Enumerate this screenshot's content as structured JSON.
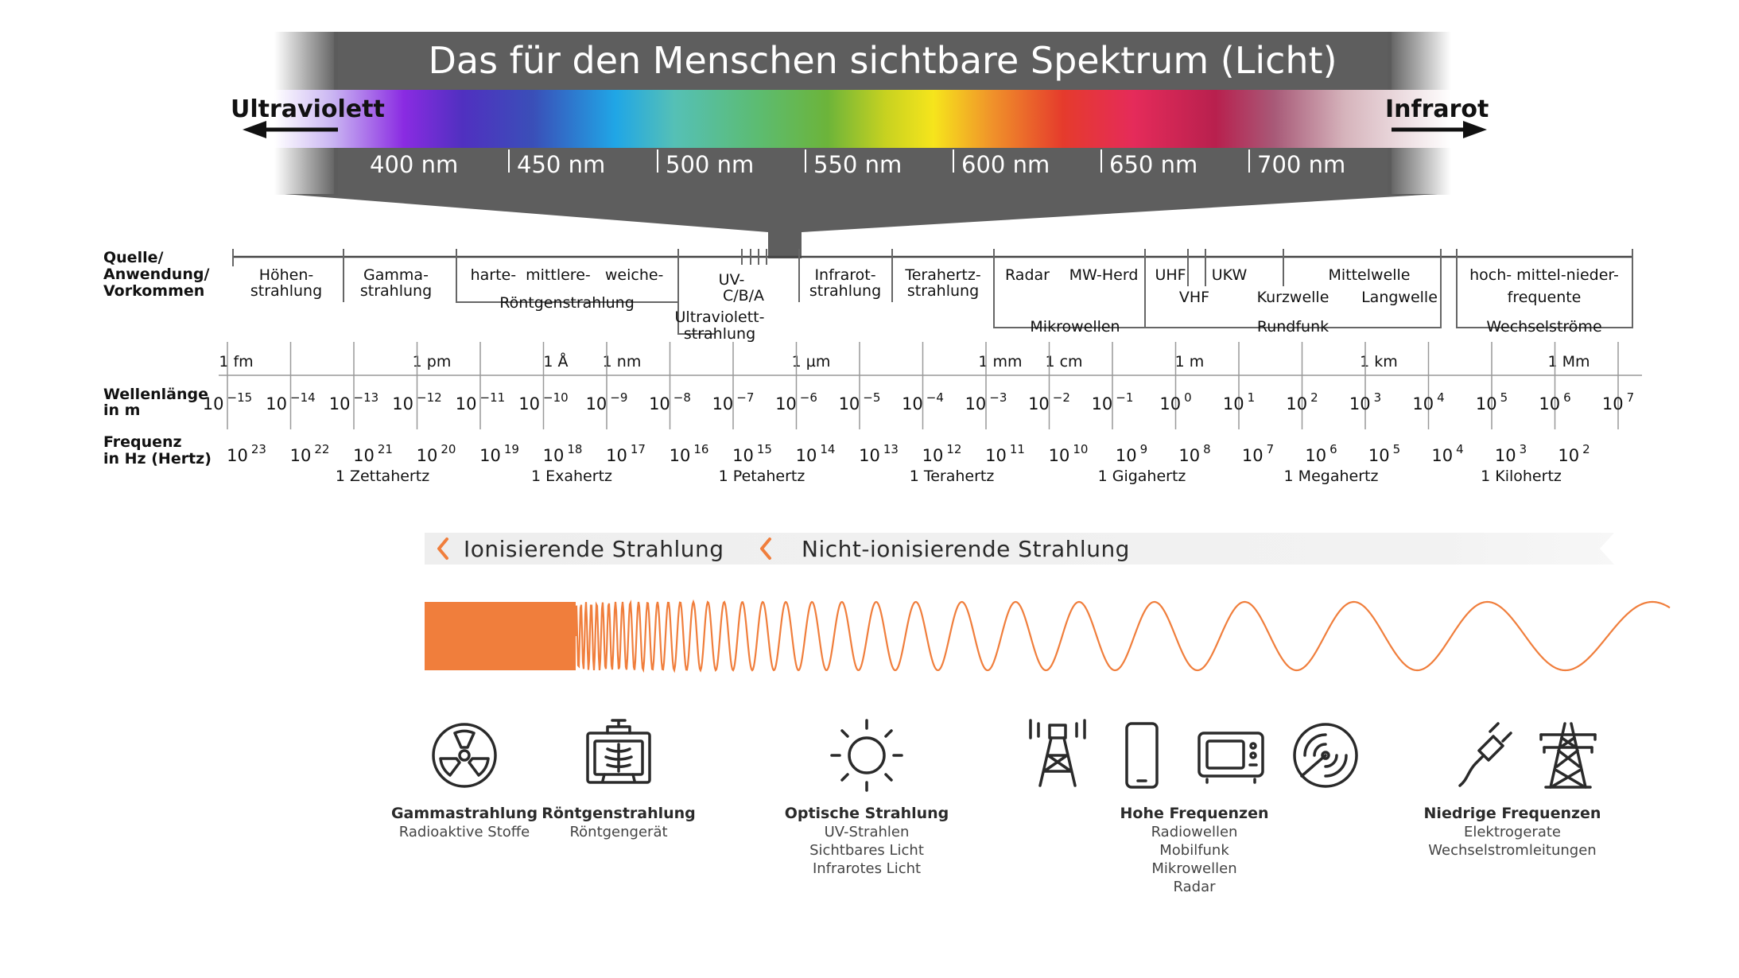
{
  "spectrum": {
    "title": "Das für den Menschen sichtbare Spektrum (Licht)",
    "left_label": "Ultraviolett",
    "right_label": "Infrarot",
    "ticks": [
      "400 nm",
      "450 nm",
      "500 nm",
      "550 nm",
      "600 nm",
      "650 nm",
      "700 nm"
    ]
  },
  "scale": {
    "row_labels": {
      "source": [
        "Quelle/",
        "Anwendung/",
        "Vorkommen"
      ],
      "wavelength": [
        "Wellenlänge",
        "in m"
      ],
      "frequency": [
        "Frequenz",
        "in Hz (Hertz)"
      ]
    },
    "sources": [
      {
        "lines": [
          "Höhen-",
          "strahlung"
        ]
      },
      {
        "lines": [
          "Gamma-",
          "strahlung"
        ]
      },
      {
        "lines": [
          "harte-  mittlere-   weiche-"
        ]
      },
      {
        "lines": [
          "Röntgenstrahlung"
        ]
      },
      {
        "lines": [
          "UV-",
          "C/B/A"
        ]
      },
      {
        "lines": [
          "Ultraviolett-",
          "strahlung"
        ]
      },
      {
        "lines": [
          "Infrarot-",
          "strahlung"
        ]
      },
      {
        "lines": [
          "Terahertz-",
          "strahlung"
        ]
      },
      {
        "lines": [
          "Radar"
        ]
      },
      {
        "lines": [
          "MW-Herd"
        ]
      },
      {
        "lines": [
          "Mikrowellen"
        ]
      },
      {
        "lines": [
          "UHF"
        ]
      },
      {
        "lines": [
          "VHF"
        ]
      },
      {
        "lines": [
          "UKW"
        ]
      },
      {
        "lines": [
          "Kurzwelle"
        ]
      },
      {
        "lines": [
          "Mittelwelle"
        ]
      },
      {
        "lines": [
          "Langwelle"
        ]
      },
      {
        "lines": [
          "Rundfunk"
        ]
      },
      {
        "lines": [
          "hoch- mittel-nieder-",
          "frequente"
        ]
      },
      {
        "lines": [
          "Wechselströme"
        ]
      }
    ],
    "length_units": [
      "1 fm",
      "1 pm",
      "1 Å",
      "1 nm",
      "1 µm",
      "1 mm",
      "1 cm",
      "1 m",
      "1 km",
      "1 Mm"
    ],
    "wavelength_exponents": [
      "−15",
      "−14",
      "−13",
      "−12",
      "−11",
      "−10",
      "−9",
      "−8",
      "−7",
      "−6",
      "−5",
      "−4",
      "−3",
      "−2",
      "−1",
      "0",
      "1",
      "2",
      "3",
      "4",
      "5",
      "6",
      "7"
    ],
    "frequency_exponents": [
      "23",
      "22",
      "21",
      "20",
      "19",
      "18",
      "17",
      "16",
      "15",
      "14",
      "13",
      "12",
      "11",
      "10",
      "9",
      "8",
      "7",
      "6",
      "5",
      "4",
      "3",
      "2"
    ],
    "base": "10",
    "frequency_names": [
      "1 Zettahertz",
      "1 Exahertz",
      "1 Petahertz",
      "1 Terahertz",
      "1 Gigahertz",
      "1 Megahertz",
      "1 Kilohertz"
    ]
  },
  "radiation_banner": {
    "ionizing": "Ionisierende Strahlung",
    "non_ionizing": "Nicht-ionisierende Strahlung",
    "accent_color": "#f07e3c"
  },
  "categories": [
    {
      "title": "Gammastrahlung",
      "lines": [
        "Radioaktive Stoffe"
      ],
      "icons": [
        "radiation-icon"
      ]
    },
    {
      "title": "Röntgenstrahlung",
      "lines": [
        "Röntgengerät"
      ],
      "icons": [
        "xray-machine-icon"
      ]
    },
    {
      "title": "Optische Strahlung",
      "lines": [
        "UV-Strahlen",
        "Sichtbares Licht",
        "Infrarotes Licht"
      ],
      "icons": [
        "sun-icon"
      ]
    },
    {
      "title": "Hohe Frequenzen",
      "lines": [
        "Radiowellen",
        "Mobilfunk",
        "Mikrowellen",
        "Radar"
      ],
      "icons": [
        "antenna-tower-icon",
        "mobile-phone-icon",
        "microwave-icon",
        "radar-icon"
      ]
    },
    {
      "title": "Niedrige Frequenzen",
      "lines": [
        "Elektrogerate",
        "Wechselstromleitungen"
      ],
      "icons": [
        "power-plug-icon",
        "power-pylon-icon"
      ]
    }
  ]
}
